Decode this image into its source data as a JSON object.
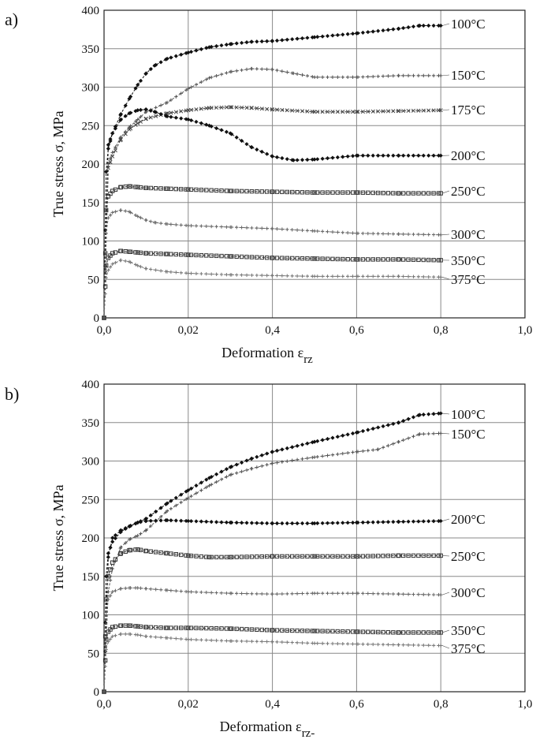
{
  "chart_data": [
    {
      "type": "line",
      "panel_label": "a)",
      "xlabel_main": "Deformation ε",
      "xlabel_sub": "rz",
      "ylabel": "True stress σ, MPa",
      "x_ticks": [
        "0,0",
        "0,02",
        "0,4",
        "0,6",
        "0,8",
        "1,0"
      ],
      "y_ticks": [
        "0",
        "50",
        "100",
        "150",
        "200",
        "250",
        "300",
        "350",
        "400"
      ],
      "xlim": [
        0,
        1.0
      ],
      "ylim": [
        0,
        400
      ],
      "grid": true,
      "series": [
        {
          "name": "100°C",
          "color": "#111111",
          "marker": "diamond",
          "x": [
            0.0,
            0.01,
            0.02,
            0.04,
            0.06,
            0.08,
            0.1,
            0.12,
            0.15,
            0.2,
            0.25,
            0.3,
            0.35,
            0.4,
            0.5,
            0.6,
            0.7,
            0.75,
            0.8
          ],
          "y": [
            0,
            225,
            240,
            265,
            285,
            303,
            318,
            328,
            337,
            345,
            352,
            356,
            359,
            360,
            365,
            370,
            376,
            380,
            380
          ]
        },
        {
          "name": "150°C",
          "color": "#555555",
          "marker": "plus",
          "x": [
            0.0,
            0.01,
            0.02,
            0.04,
            0.06,
            0.08,
            0.1,
            0.15,
            0.2,
            0.25,
            0.3,
            0.35,
            0.4,
            0.45,
            0.5,
            0.6,
            0.7,
            0.8
          ],
          "y": [
            0,
            200,
            215,
            235,
            248,
            258,
            268,
            280,
            298,
            312,
            320,
            324,
            323,
            318,
            313,
            313,
            315,
            315
          ]
        },
        {
          "name": "175°C",
          "color": "#444444",
          "marker": "cross",
          "x": [
            0.0,
            0.01,
            0.02,
            0.04,
            0.06,
            0.08,
            0.1,
            0.15,
            0.2,
            0.25,
            0.3,
            0.35,
            0.4,
            0.5,
            0.6,
            0.7,
            0.8
          ],
          "y": [
            0,
            195,
            210,
            232,
            245,
            253,
            259,
            266,
            270,
            273,
            274,
            273,
            271,
            268,
            268,
            269,
            270
          ]
        },
        {
          "name": "200°C",
          "color": "#111111",
          "marker": "diamond",
          "x": [
            0.0,
            0.005,
            0.01,
            0.02,
            0.04,
            0.06,
            0.08,
            0.1,
            0.12,
            0.15,
            0.2,
            0.25,
            0.3,
            0.35,
            0.4,
            0.45,
            0.5,
            0.6,
            0.7,
            0.8
          ],
          "y": [
            0,
            190,
            220,
            240,
            258,
            266,
            270,
            271,
            268,
            262,
            258,
            250,
            240,
            222,
            210,
            205,
            206,
            211,
            211,
            211
          ]
        },
        {
          "name": "250°C",
          "color": "#333333",
          "marker": "square",
          "x": [
            0.0,
            0.005,
            0.01,
            0.02,
            0.04,
            0.06,
            0.08,
            0.1,
            0.15,
            0.2,
            0.3,
            0.4,
            0.5,
            0.6,
            0.7,
            0.8
          ],
          "y": [
            0,
            140,
            158,
            165,
            170,
            171,
            170,
            169,
            168,
            167,
            165,
            164,
            163,
            163,
            162,
            162
          ]
        },
        {
          "name": "300°C",
          "color": "#666666",
          "marker": "plus",
          "x": [
            0.0,
            0.005,
            0.01,
            0.02,
            0.04,
            0.06,
            0.08,
            0.1,
            0.12,
            0.15,
            0.2,
            0.3,
            0.4,
            0.5,
            0.6,
            0.7,
            0.8
          ],
          "y": [
            0,
            110,
            130,
            137,
            140,
            138,
            132,
            127,
            124,
            122,
            120,
            118,
            116,
            113,
            110,
            109,
            108
          ]
        },
        {
          "name": "350°C",
          "color": "#333333",
          "marker": "square",
          "x": [
            0.0,
            0.005,
            0.01,
            0.02,
            0.04,
            0.06,
            0.08,
            0.1,
            0.15,
            0.2,
            0.3,
            0.4,
            0.5,
            0.6,
            0.7,
            0.8
          ],
          "y": [
            0,
            68,
            78,
            84,
            87,
            86,
            85,
            84,
            83,
            82,
            80,
            78,
            77,
            76,
            76,
            75
          ]
        },
        {
          "name": "375°C",
          "color": "#777777",
          "marker": "plus",
          "x": [
            0.0,
            0.005,
            0.01,
            0.02,
            0.04,
            0.06,
            0.08,
            0.1,
            0.15,
            0.2,
            0.3,
            0.4,
            0.5,
            0.6,
            0.7,
            0.8
          ],
          "y": [
            0,
            52,
            62,
            70,
            75,
            73,
            68,
            64,
            60,
            58,
            56,
            55,
            54,
            54,
            54,
            53
          ]
        }
      ]
    },
    {
      "type": "line",
      "panel_label": "b)",
      "xlabel_main": "Deformation ε",
      "xlabel_sub": "rz-",
      "ylabel": "True stress σ, MPa",
      "x_ticks": [
        "0,0",
        "0,02",
        "0,4",
        "0,6",
        "0,8",
        "1,0"
      ],
      "y_ticks": [
        "0",
        "50",
        "100",
        "150",
        "200",
        "250",
        "300",
        "350",
        "400"
      ],
      "xlim": [
        0,
        1.0
      ],
      "ylim": [
        0,
        400
      ],
      "grid": true,
      "series": [
        {
          "name": "100°C",
          "color": "#111111",
          "marker": "diamond",
          "x": [
            0.0,
            0.01,
            0.02,
            0.04,
            0.06,
            0.08,
            0.1,
            0.15,
            0.2,
            0.25,
            0.3,
            0.35,
            0.4,
            0.5,
            0.6,
            0.7,
            0.75,
            0.8
          ],
          "y": [
            0,
            175,
            200,
            210,
            215,
            220,
            225,
            245,
            262,
            278,
            292,
            303,
            312,
            325,
            337,
            350,
            360,
            362
          ]
        },
        {
          "name": "150°C",
          "color": "#555555",
          "marker": "plus",
          "x": [
            0.0,
            0.01,
            0.02,
            0.04,
            0.06,
            0.08,
            0.1,
            0.15,
            0.2,
            0.25,
            0.3,
            0.35,
            0.4,
            0.5,
            0.6,
            0.65,
            0.7,
            0.75,
            0.8
          ],
          "y": [
            0,
            130,
            160,
            188,
            198,
            203,
            210,
            235,
            252,
            268,
            282,
            290,
            297,
            305,
            312,
            315,
            325,
            335,
            336
          ]
        },
        {
          "name": "200°C",
          "color": "#111111",
          "marker": "diamond",
          "x": [
            0.0,
            0.005,
            0.01,
            0.02,
            0.04,
            0.06,
            0.08,
            0.1,
            0.15,
            0.2,
            0.3,
            0.4,
            0.5,
            0.6,
            0.7,
            0.8
          ],
          "y": [
            0,
            150,
            180,
            195,
            208,
            215,
            220,
            222,
            223,
            222,
            220,
            219,
            219,
            220,
            221,
            222
          ]
        },
        {
          "name": "250°C",
          "color": "#333333",
          "marker": "square",
          "x": [
            0.0,
            0.005,
            0.01,
            0.02,
            0.04,
            0.06,
            0.08,
            0.1,
            0.15,
            0.2,
            0.25,
            0.3,
            0.4,
            0.5,
            0.6,
            0.7,
            0.8
          ],
          "y": [
            0,
            120,
            150,
            168,
            180,
            184,
            185,
            183,
            180,
            177,
            175,
            175,
            176,
            176,
            176,
            177,
            177
          ]
        },
        {
          "name": "300°C",
          "color": "#666666",
          "marker": "plus",
          "x": [
            0.0,
            0.005,
            0.01,
            0.02,
            0.04,
            0.06,
            0.08,
            0.1,
            0.15,
            0.2,
            0.3,
            0.4,
            0.5,
            0.6,
            0.7,
            0.8
          ],
          "y": [
            0,
            100,
            120,
            130,
            134,
            135,
            135,
            134,
            132,
            130,
            128,
            127,
            128,
            128,
            127,
            126
          ]
        },
        {
          "name": "350°C",
          "color": "#333333",
          "marker": "square",
          "x": [
            0.0,
            0.005,
            0.01,
            0.02,
            0.04,
            0.06,
            0.08,
            0.1,
            0.15,
            0.2,
            0.3,
            0.4,
            0.5,
            0.6,
            0.7,
            0.8
          ],
          "y": [
            0,
            68,
            78,
            84,
            86,
            86,
            85,
            84,
            83,
            83,
            82,
            80,
            79,
            78,
            77,
            77
          ]
        },
        {
          "name": "375°C",
          "color": "#777777",
          "marker": "plus",
          "x": [
            0.0,
            0.005,
            0.01,
            0.02,
            0.04,
            0.06,
            0.08,
            0.1,
            0.15,
            0.2,
            0.3,
            0.4,
            0.5,
            0.6,
            0.7,
            0.8
          ],
          "y": [
            0,
            55,
            65,
            72,
            75,
            75,
            74,
            72,
            70,
            68,
            66,
            65,
            63,
            62,
            61,
            60
          ]
        }
      ]
    }
  ]
}
